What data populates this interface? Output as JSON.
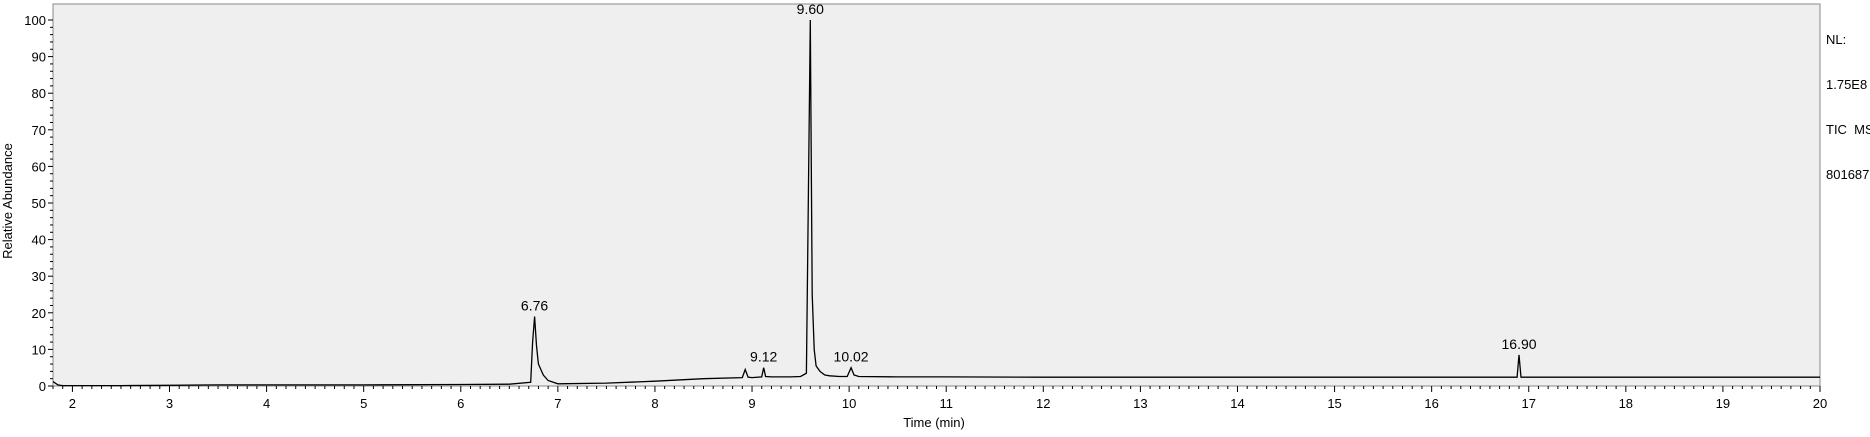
{
  "chart_data": {
    "type": "line",
    "xlabel": "Time (min)",
    "ylabel": "Relative Abundance",
    "xlim": [
      1.8,
      20
    ],
    "ylim": [
      0,
      100
    ],
    "x_ticks": [
      2,
      3,
      4,
      5,
      6,
      7,
      8,
      9,
      10,
      11,
      12,
      13,
      14,
      15,
      16,
      17,
      18,
      19,
      20
    ],
    "y_ticks": [
      0,
      10,
      20,
      30,
      40,
      50,
      60,
      70,
      80,
      90,
      100
    ],
    "grid": false,
    "series": [
      {
        "x": [
          1.8,
          1.85,
          1.9,
          2.5,
          3.0,
          3.5,
          4.0,
          5.0,
          6.0,
          6.5,
          6.72,
          6.74,
          6.76,
          6.78,
          6.8,
          6.85,
          6.9,
          7.0,
          7.5,
          8.0,
          8.5,
          8.9,
          8.93,
          8.96,
          9.0,
          9.1,
          9.12,
          9.14,
          9.2,
          9.4,
          9.5,
          9.56,
          9.58,
          9.6,
          9.61,
          9.62,
          9.64,
          9.66,
          9.7,
          9.75,
          9.8,
          9.9,
          9.98,
          10.02,
          10.05,
          10.1,
          10.5,
          11.0,
          12.0,
          13.0,
          14.0,
          15.0,
          16.0,
          16.8,
          16.88,
          16.9,
          16.92,
          17.0,
          18.0,
          19.0,
          20.0
        ],
        "y": [
          1.2,
          0.3,
          0.1,
          0.1,
          0.2,
          0.3,
          0.3,
          0.3,
          0.4,
          0.5,
          1.0,
          12.0,
          19.0,
          11.0,
          6.0,
          3.0,
          1.5,
          0.6,
          0.8,
          1.3,
          2.0,
          2.3,
          4.5,
          2.4,
          2.3,
          2.5,
          5.0,
          2.6,
          2.5,
          2.5,
          2.6,
          3.5,
          50.0,
          100.0,
          60.0,
          25.0,
          10.0,
          5.5,
          4.0,
          3.0,
          2.8,
          2.6,
          2.6,
          5.0,
          3.0,
          2.6,
          2.5,
          2.5,
          2.4,
          2.4,
          2.4,
          2.4,
          2.4,
          2.4,
          2.4,
          8.5,
          2.4,
          2.4,
          2.4,
          2.4,
          2.4
        ]
      }
    ],
    "peak_labels": [
      {
        "x": 6.76,
        "y": 19.0,
        "text": "6.76"
      },
      {
        "x": 9.12,
        "y": 5.0,
        "text": "9.12"
      },
      {
        "x": 9.6,
        "y": 100.0,
        "text": "9.60"
      },
      {
        "x": 10.02,
        "y": 5.0,
        "text": "10.02"
      },
      {
        "x": 16.9,
        "y": 8.5,
        "text": "16.90"
      }
    ]
  },
  "info": {
    "nl_label": "NL:",
    "nl_value": "1.75E8",
    "scan_type": "TIC  MS",
    "sample_id": "801687"
  }
}
